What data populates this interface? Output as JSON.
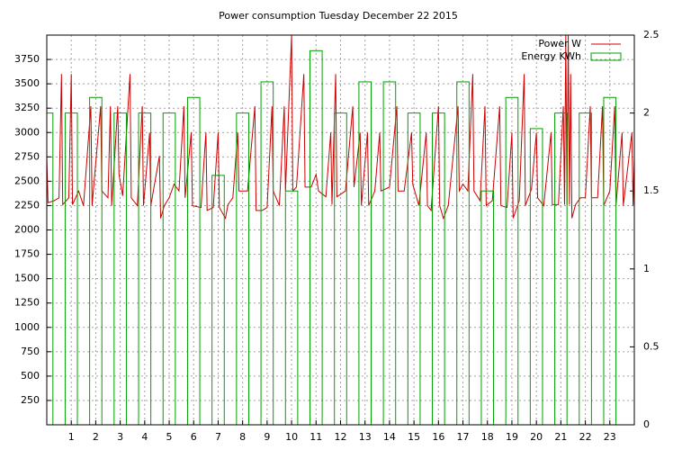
{
  "chart_data": {
    "type": "combo",
    "title": "Power consumption Tuesday December 22 2015",
    "xlim": [
      0,
      24
    ],
    "xticks": [
      1,
      2,
      3,
      4,
      5,
      6,
      7,
      8,
      9,
      10,
      11,
      12,
      13,
      14,
      15,
      16,
      17,
      18,
      19,
      20,
      21,
      22,
      23
    ],
    "ylim": [
      0,
      4000
    ],
    "yticks": [
      250,
      500,
      750,
      1000,
      1250,
      1500,
      1750,
      2000,
      2250,
      2500,
      2750,
      3000,
      3250,
      3500,
      3750
    ],
    "y2lim": [
      0,
      2.5
    ],
    "y2ticks": [
      0,
      0.5,
      1,
      1.5,
      2,
      2.5
    ],
    "grid": true,
    "legend": "top-right",
    "series": [
      {
        "name": "Power W",
        "type": "line",
        "color": "#cc0000",
        "x": [
          0,
          0.05,
          0.3,
          0.5,
          0.6,
          0.65,
          0.9,
          1.0,
          1.05,
          1.3,
          1.5,
          1.8,
          1.85,
          2.2,
          2.25,
          2.5,
          2.6,
          2.65,
          2.9,
          2.95,
          3.1,
          3.4,
          3.45,
          3.7,
          3.9,
          3.95,
          4.2,
          4.25,
          4.6,
          4.65,
          4.8,
          5.0,
          5.2,
          5.4,
          5.6,
          5.65,
          5.9,
          5.95,
          6.3,
          6.5,
          6.55,
          6.8,
          7.0,
          7.05,
          7.3,
          7.4,
          7.6,
          7.8,
          7.85,
          8.2,
          8.5,
          8.55,
          8.8,
          9.0,
          9.2,
          9.25,
          9.5,
          9.7,
          9.75,
          10.0,
          10.05,
          10.2,
          10.5,
          10.55,
          10.8,
          11.0,
          11.1,
          11.4,
          11.6,
          11.65,
          11.8,
          11.85,
          12.2,
          12.5,
          12.55,
          12.8,
          12.85,
          13.1,
          13.15,
          13.4,
          13.6,
          13.65,
          14.0,
          14.3,
          14.35,
          14.6,
          14.9,
          14.95,
          15.2,
          15.5,
          15.55,
          15.7,
          16.0,
          16.05,
          16.2,
          16.4,
          16.8,
          16.85,
          17.0,
          17.2,
          17.4,
          17.45,
          17.7,
          17.9,
          17.95,
          18.2,
          18.5,
          18.55,
          18.8,
          19.0,
          19.05,
          19.3,
          19.5,
          19.55,
          19.8,
          20.0,
          20.05,
          20.3,
          20.6,
          20.65,
          20.9,
          21.1,
          21.15,
          21.2,
          21.25,
          21.3,
          21.35,
          21.4,
          21.45,
          21.6,
          21.8,
          22.0,
          22.2,
          22.25,
          22.5,
          22.7,
          22.75,
          23.0,
          23.2,
          23.25,
          23.5,
          23.55,
          23.9,
          23.95,
          24
        ],
        "values": [
          2750,
          2280,
          2300,
          2330,
          3600,
          2260,
          2330,
          3600,
          2260,
          2400,
          2250,
          3270,
          2250,
          3270,
          2400,
          2330,
          3270,
          2250,
          3270,
          2570,
          2350,
          3600,
          2330,
          2250,
          3270,
          2250,
          3000,
          2250,
          2760,
          2120,
          2250,
          2330,
          2470,
          2400,
          3270,
          2330,
          3000,
          2250,
          2230,
          3000,
          2200,
          2230,
          3000,
          2230,
          2120,
          2260,
          2330,
          3000,
          2400,
          2400,
          3270,
          2200,
          2200,
          2230,
          3270,
          2400,
          2250,
          3270,
          2400,
          4000,
          2400,
          2440,
          3600,
          2440,
          2440,
          2570,
          2400,
          2340,
          3000,
          2260,
          3600,
          2340,
          2400,
          3270,
          2440,
          3000,
          2250,
          3000,
          2250,
          2400,
          3000,
          2400,
          2440,
          3270,
          2400,
          2400,
          3000,
          2470,
          2250,
          3000,
          2250,
          2200,
          3270,
          2250,
          2120,
          2250,
          3270,
          2400,
          2470,
          2400,
          3600,
          2400,
          2300,
          3270,
          2250,
          2300,
          3270,
          2250,
          2230,
          3000,
          2120,
          2300,
          3600,
          2250,
          2420,
          3000,
          2330,
          2250,
          3000,
          2260,
          2260,
          3270,
          2260,
          4000,
          2260,
          4000,
          2260,
          3600,
          2120,
          2260,
          2330,
          2330,
          3270,
          2330,
          2330,
          3270,
          2250,
          2400,
          3270,
          2250,
          3000,
          2250,
          3000,
          2250,
          2750
        ]
      },
      {
        "name": "Energy KWh",
        "type": "bar",
        "axis": "y2",
        "color": "#00a000",
        "x": [
          0,
          1,
          2,
          3,
          4,
          5,
          6,
          7,
          8,
          9,
          10,
          11,
          12,
          13,
          14,
          15,
          16,
          17,
          18,
          19,
          20,
          21,
          22,
          23
        ],
        "values": [
          2.0,
          2.0,
          2.1,
          2.0,
          2.0,
          2.0,
          2.1,
          1.6,
          2.0,
          2.2,
          1.5,
          2.4,
          2.0,
          2.2,
          2.2,
          2.0,
          2.0,
          2.2,
          1.5,
          2.1,
          1.9,
          2.0,
          2.0,
          2.1
        ]
      }
    ]
  }
}
